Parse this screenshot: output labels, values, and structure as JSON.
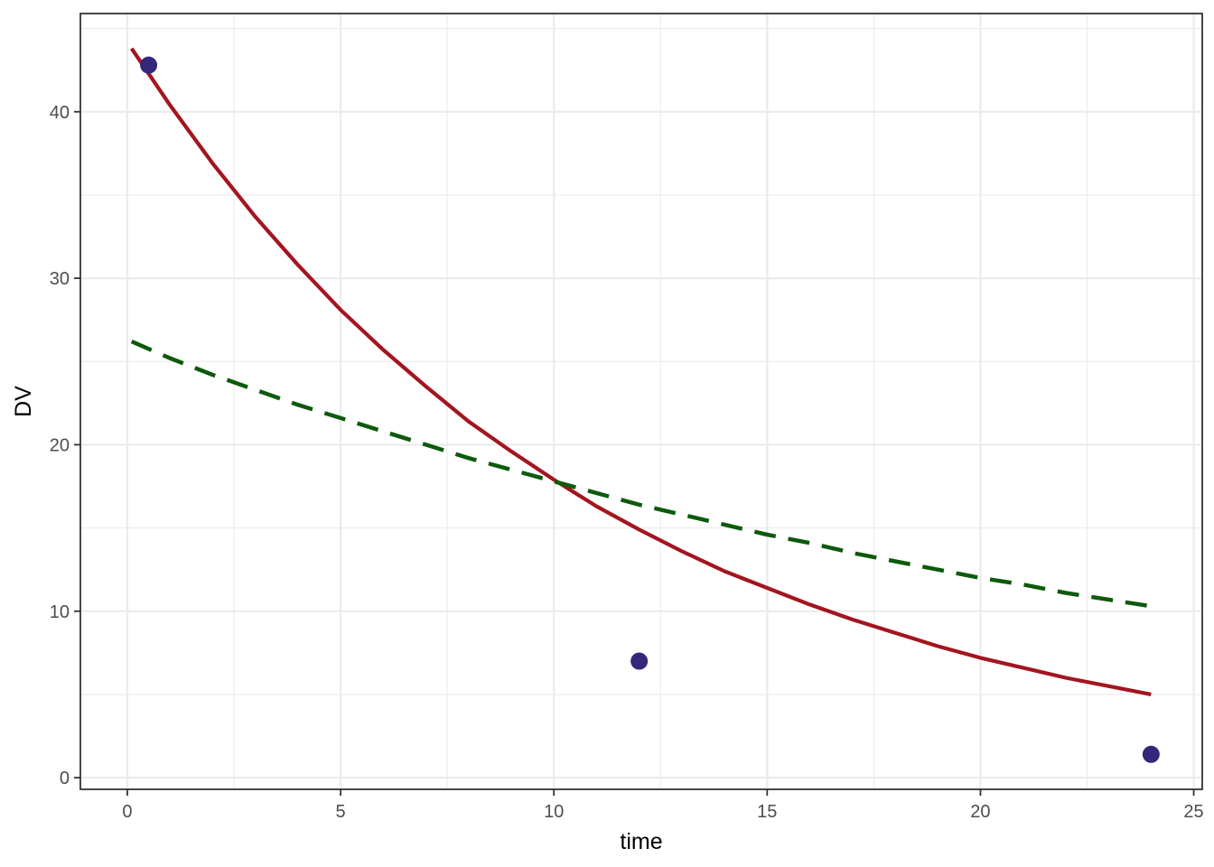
{
  "chart_data": {
    "type": "line",
    "title": "",
    "xlabel": "time",
    "ylabel": "DV",
    "xlim": [
      -1.1,
      25.2
    ],
    "ylim": [
      -0.7,
      45.9
    ],
    "xticks": [
      0,
      5,
      10,
      15,
      20,
      25
    ],
    "yticks": [
      0,
      10,
      20,
      30,
      40
    ],
    "xtick_labels": [
      "0",
      "5",
      "10",
      "15",
      "20",
      "25"
    ],
    "ytick_labels": [
      "0",
      "10",
      "20",
      "30",
      "40"
    ],
    "grid": true,
    "legend": "none",
    "colors": {
      "points": "#33287a",
      "curve": "#a3151f",
      "dashed": "#0d5a0d",
      "panel_border": "#333333",
      "grid": "#ebebeb"
    },
    "points": {
      "x": [
        0.5,
        12,
        24
      ],
      "y": [
        42.8,
        7.0,
        1.4
      ]
    },
    "series": [
      {
        "style": "solid",
        "x": [
          0.1,
          1,
          2,
          3,
          4,
          5,
          6,
          7,
          8,
          9,
          10,
          11,
          12,
          13,
          14,
          15,
          16,
          17,
          18,
          19,
          20,
          21,
          22,
          23,
          24
        ],
        "y": [
          43.8,
          40.4,
          36.9,
          33.7,
          30.8,
          28.1,
          25.7,
          23.5,
          21.4,
          19.6,
          17.9,
          16.3,
          14.9,
          13.6,
          12.4,
          11.4,
          10.4,
          9.5,
          8.7,
          7.9,
          7.2,
          6.6,
          6.0,
          5.5,
          5.0
        ]
      },
      {
        "style": "dashed",
        "x": [
          0.1,
          1,
          2,
          3,
          4,
          5,
          6,
          7,
          8,
          9,
          10,
          11,
          12,
          13,
          14,
          15,
          16,
          17,
          18,
          19,
          20,
          21,
          22,
          23,
          24
        ],
        "y": [
          26.2,
          25.2,
          24.2,
          23.3,
          22.4,
          21.6,
          20.8,
          20.0,
          19.2,
          18.5,
          17.8,
          17.1,
          16.4,
          15.8,
          15.2,
          14.6,
          14.1,
          13.5,
          13.0,
          12.5,
          12.0,
          11.6,
          11.1,
          10.7,
          10.3
        ]
      }
    ]
  }
}
